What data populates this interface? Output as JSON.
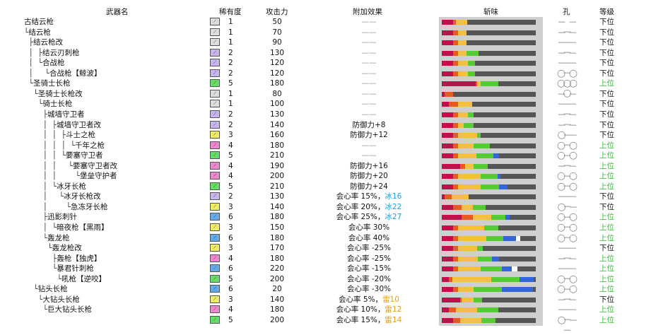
{
  "headers": {
    "name": "武器名",
    "rarity": "稀有度",
    "attack": "攻击力",
    "bonus": "附加效果",
    "sharpness": "斩味",
    "slots": "孔",
    "grade": "等级"
  },
  "colors": {
    "red": "#c0104a",
    "orange": "#e85a20",
    "yellow": "#f5c040",
    "green": "#55cc33",
    "blue": "#3366dd",
    "white": "#ffffff",
    "empty": "#555555",
    "grade_high": "#33bb33",
    "ice": "#1aa3e8",
    "thunder": "#e8a010"
  },
  "rarity_colors": {
    "1": "#dddddd",
    "2": "#c8b4ee",
    "3": "#eeee66",
    "4": "#ee88cc",
    "5": "#66dd66",
    "6": "#66aaee"
  },
  "weapons": [
    {
      "tree": "",
      "name": "古结云枪",
      "rarity": "1",
      "attack": "50",
      "bonus": "——",
      "bonus_el": "",
      "el_type": "",
      "slots": "— — —",
      "grade": "下位",
      "high": false,
      "sharp": [
        [
          "red",
          16
        ],
        [
          "orange",
          4
        ],
        [
          "yellow",
          16
        ]
      ]
    },
    {
      "tree": "└",
      "name": "结云枪",
      "rarity": "1",
      "attack": "70",
      "bonus": "——",
      "bonus_el": "",
      "el_type": "",
      "slots": "— — —",
      "grade": "下位",
      "high": false,
      "sharp": [
        [
          "red",
          16
        ],
        [
          "orange",
          7
        ],
        [
          "yellow",
          12
        ],
        [
          "green",
          0
        ]
      ]
    },
    {
      "tree": "  ├",
      "name": "结云枪改",
      "rarity": "1",
      "attack": "90",
      "bonus": "——",
      "bonus_el": "",
      "el_type": "",
      "slots": "— — —",
      "grade": "下位",
      "high": false,
      "sharp": [
        [
          "red",
          16
        ],
        [
          "orange",
          7
        ],
        [
          "yellow",
          12
        ]
      ]
    },
    {
      "tree": "  │  ├",
      "name": "结云刃刺枪",
      "rarity": "2",
      "attack": "130",
      "bonus": "——",
      "bonus_el": "",
      "el_type": "",
      "slots": "— — —",
      "grade": "下位",
      "high": false,
      "sharp": [
        [
          "red",
          16
        ],
        [
          "orange",
          7
        ],
        [
          "yellow",
          12
        ],
        [
          "green",
          17
        ]
      ]
    },
    {
      "tree": "  │  └",
      "name": "合战枪",
      "rarity": "2",
      "attack": "120",
      "bonus": "——",
      "bonus_el": "",
      "el_type": "",
      "slots": "— — —",
      "grade": "下位",
      "high": false,
      "sharp": [
        [
          "red",
          16
        ],
        [
          "orange",
          7
        ],
        [
          "yellow",
          14
        ],
        [
          "green",
          10
        ]
      ]
    },
    {
      "tree": "  │     └",
      "name": "合战枪【鲸波】",
      "rarity": "2",
      "attack": "120",
      "bonus": "——",
      "bonus_el": "",
      "el_type": "",
      "slots": "◯ ◯ ◯",
      "grade": "下位",
      "high": false,
      "sharp": [
        [
          "red",
          16
        ],
        [
          "orange",
          7
        ],
        [
          "yellow",
          14
        ],
        [
          "green",
          10
        ]
      ]
    },
    {
      "tree": "  └",
      "name": "圣骑士长枪",
      "rarity": "5",
      "attack": "180",
      "bonus": "——",
      "bonus_el": "",
      "el_type": "",
      "slots": "◯ ◯ ◯",
      "grade": "上位",
      "high": true,
      "sharp": [
        [
          "red",
          48
        ],
        [
          "orange",
          2
        ],
        [
          "yellow",
          5
        ],
        [
          "green",
          25
        ],
        [
          "blue",
          0
        ]
      ]
    },
    {
      "tree": "    └",
      "name": "圣骑士长枪改",
      "rarity": "1",
      "attack": "80",
      "bonus": "——",
      "bonus_el": "",
      "el_type": "",
      "slots": "— — —",
      "grade": "下位",
      "high": false,
      "sharp": [
        [
          "red",
          4
        ],
        [
          "orange",
          12
        ],
        [
          "yellow",
          0
        ]
      ]
    },
    {
      "tree": "      └",
      "name": "骑士长枪",
      "rarity": "1",
      "attack": "100",
      "bonus": "——",
      "bonus_el": "",
      "el_type": "",
      "slots": "— — —",
      "grade": "下位",
      "high": false,
      "sharp": [
        [
          "red",
          10
        ],
        [
          "orange",
          13
        ],
        [
          "yellow",
          20
        ],
        [
          "green",
          0
        ]
      ]
    },
    {
      "tree": "        ├",
      "name": "城墙守卫者",
      "rarity": "2",
      "attack": "130",
      "bonus": "——",
      "bonus_el": "",
      "el_type": "",
      "slots": "— — —",
      "grade": "下位",
      "high": false,
      "sharp": [
        [
          "red",
          16
        ],
        [
          "orange",
          7
        ],
        [
          "yellow",
          14
        ],
        [
          "green",
          8
        ]
      ]
    },
    {
      "tree": "        │  ├",
      "name": "城墙守卫者改",
      "rarity": "2",
      "attack": "140",
      "bonus": "防御力+8",
      "bonus_el": "",
      "el_type": "",
      "slots": "— — —",
      "grade": "下位",
      "high": false,
      "sharp": [
        [
          "red",
          16
        ],
        [
          "orange",
          7
        ],
        [
          "yellow",
          8
        ],
        [
          "green",
          14
        ]
      ]
    },
    {
      "tree": "        │  │  ├",
      "name": "斗士之枪",
      "rarity": "3",
      "attack": "160",
      "bonus": "防御力+12",
      "bonus_el": "",
      "el_type": "",
      "slots": "◯ — —",
      "grade": "下位",
      "high": false,
      "sharp": [
        [
          "red",
          16
        ],
        [
          "orange",
          7
        ],
        [
          "yellow",
          27
        ],
        [
          "green",
          5
        ]
      ]
    },
    {
      "tree": "        │  │  │  └",
      "name": "千年之枪",
      "rarity": "4",
      "attack": "180",
      "bonus": "——",
      "bonus_el": "",
      "el_type": "",
      "slots": "◯ ◯ —",
      "grade": "上位",
      "high": true,
      "sharp": [
        [
          "red",
          16
        ],
        [
          "orange",
          7
        ],
        [
          "yellow",
          22
        ],
        [
          "green",
          23
        ]
      ]
    },
    {
      "tree": "        │  │  └",
      "name": "要塞守卫者",
      "rarity": "5",
      "attack": "210",
      "bonus": "——",
      "bonus_el": "",
      "el_type": "",
      "slots": "◯ ◯ —",
      "grade": "上位",
      "high": true,
      "sharp": [
        [
          "red",
          16
        ],
        [
          "orange",
          7
        ],
        [
          "yellow",
          26
        ],
        [
          "green",
          24
        ],
        [
          "blue",
          8
        ]
      ]
    },
    {
      "tree": "        │  │     └",
      "name": "要塞守卫者改",
      "rarity": "4",
      "attack": "190",
      "bonus": "防御力+16",
      "bonus_el": "",
      "el_type": "",
      "slots": "— — —",
      "grade": "上位",
      "high": true,
      "sharp": [
        [
          "red",
          26
        ],
        [
          "orange",
          7
        ],
        [
          "yellow",
          12
        ],
        [
          "green",
          20
        ]
      ]
    },
    {
      "tree": "        │  │        └",
      "name": "堡垒守护者",
      "rarity": "4",
      "attack": "200",
      "bonus": "防御力+20",
      "bonus_el": "",
      "el_type": "",
      "slots": "◯ ◯ —",
      "grade": "上位",
      "high": true,
      "sharp": [
        [
          "red",
          16
        ],
        [
          "orange",
          7
        ],
        [
          "yellow",
          32
        ],
        [
          "green",
          24
        ],
        [
          "blue",
          4
        ]
      ]
    },
    {
      "tree": "        │  └",
      "name": "冰牙长枪",
      "rarity": "5",
      "attack": "210",
      "bonus": "防御力+24",
      "bonus_el": "",
      "el_type": "",
      "slots": "◯ ◯ —",
      "grade": "上位",
      "high": true,
      "sharp": [
        [
          "red",
          16
        ],
        [
          "orange",
          7
        ],
        [
          "yellow",
          32
        ],
        [
          "green",
          26
        ],
        [
          "blue",
          12
        ]
      ]
    },
    {
      "tree": "        │     └",
      "name": "冰牙长枪改",
      "rarity": "2",
      "attack": "130",
      "bonus": "会心率 15%，",
      "bonus_el": "冰16",
      "el_type": "ice",
      "slots": "— — —",
      "grade": "下位",
      "high": false,
      "sharp": [
        [
          "red",
          4
        ],
        [
          "orange",
          10
        ],
        [
          "yellow",
          24
        ],
        [
          "green",
          0
        ]
      ]
    },
    {
      "tree": "        │        └",
      "name": "急冻牙长枪",
      "rarity": "3",
      "attack": "140",
      "bonus": "会心率 20%，",
      "bonus_el": "冰22",
      "el_type": "ice",
      "slots": "◯ — —",
      "grade": "下位",
      "high": false,
      "sharp": [
        [
          "red",
          16
        ],
        [
          "orange",
          12
        ],
        [
          "yellow",
          16
        ],
        [
          "green",
          18
        ]
      ]
    },
    {
      "tree": "        ├",
      "name": "迅影刺针",
      "rarity": "6",
      "attack": "180",
      "bonus": "会心率 25%，",
      "bonus_el": "冰27",
      "el_type": "ice",
      "slots": "◯ ◯ —",
      "grade": "上位",
      "high": true,
      "sharp": [
        [
          "red",
          28
        ],
        [
          "orange",
          16
        ],
        [
          "yellow",
          26
        ],
        [
          "green",
          20
        ],
        [
          "blue",
          6
        ]
      ]
    },
    {
      "tree": "        │  └",
      "name": "暗夜枪【黑雨】",
      "rarity": "3",
      "attack": "150",
      "bonus": "会心率 30%",
      "bonus_el": "",
      "el_type": "",
      "slots": "◯ ◯ —",
      "grade": "上位",
      "high": true,
      "sharp": [
        [
          "red",
          16
        ],
        [
          "orange",
          7
        ],
        [
          "yellow",
          37
        ],
        [
          "green",
          20
        ]
      ]
    },
    {
      "tree": "        └",
      "name": "轰龙枪",
      "rarity": "6",
      "attack": "180",
      "bonus": "会心率 40%",
      "bonus_el": "",
      "el_type": "",
      "slots": "◯ ◯ —",
      "grade": "上位",
      "high": true,
      "sharp": [
        [
          "red",
          16
        ],
        [
          "orange",
          7
        ],
        [
          "yellow",
          40
        ],
        [
          "green",
          24
        ],
        [
          "blue",
          18
        ],
        [
          "white",
          6
        ]
      ]
    },
    {
      "tree": "          └",
      "name": "轰龙枪改",
      "rarity": "3",
      "attack": "170",
      "bonus": "会心率 -25%",
      "bonus_el": "",
      "el_type": "",
      "slots": "— — —",
      "grade": "下位",
      "high": false,
      "sharp": [
        [
          "red",
          16
        ],
        [
          "orange",
          7
        ],
        [
          "yellow",
          27
        ],
        [
          "green",
          8
        ]
      ]
    },
    {
      "tree": "            ├",
      "name": "轰枪【独虎】",
      "rarity": "4",
      "attack": "180",
      "bonus": "会心率 -25%",
      "bonus_el": "",
      "el_type": "",
      "slots": "— — —",
      "grade": "上位",
      "high": true,
      "sharp": [
        [
          "red",
          16
        ],
        [
          "orange",
          7
        ],
        [
          "yellow",
          28
        ],
        [
          "green",
          20
        ],
        [
          "blue",
          10
        ]
      ]
    },
    {
      "tree": "            └",
      "name": "暴君针刺枪",
      "rarity": "6",
      "attack": "220",
      "bonus": "会心率 -15%",
      "bonus_el": "",
      "el_type": "",
      "slots": "— — —",
      "grade": "上位",
      "high": true,
      "sharp": [
        [
          "red",
          16
        ],
        [
          "orange",
          7
        ],
        [
          "yellow",
          32
        ],
        [
          "green",
          30
        ],
        [
          "blue",
          14
        ],
        [
          "white",
          8
        ]
      ]
    },
    {
      "tree": "              └",
      "name": "吼枪【逆咬】",
      "rarity": "5",
      "attack": "200",
      "bonus": "会心率 -20%",
      "bonus_el": "",
      "el_type": "",
      "slots": "◯ ◯ —",
      "grade": "上位",
      "high": true,
      "sharp": [
        [
          "red",
          10
        ],
        [
          "orange",
          5
        ],
        [
          "yellow",
          55
        ],
        [
          "green",
          40
        ],
        [
          "blue",
          20
        ]
      ]
    },
    {
      "tree": "    └",
      "name": "钻头长枪",
      "rarity": "6",
      "attack": "20",
      "bonus": "会心率 -30%",
      "bonus_el": "",
      "el_type": "",
      "slots": "◯ ◯ —",
      "grade": "上位",
      "high": true,
      "sharp": [
        [
          "red",
          16
        ],
        [
          "orange",
          7
        ],
        [
          "yellow",
          22
        ],
        [
          "green",
          40
        ],
        [
          "blue",
          44
        ]
      ]
    },
    {
      "tree": "      └",
      "name": "大钻头长枪",
      "rarity": "3",
      "attack": "140",
      "bonus": "会心率 5%，",
      "bonus_el": "雷10",
      "el_type": "thunder",
      "slots": "— — —",
      "grade": "下位",
      "high": false,
      "sharp": [
        [
          "red",
          26
        ],
        [
          "orange",
          2
        ],
        [
          "yellow",
          17
        ],
        [
          "green",
          12
        ]
      ]
    },
    {
      "tree": "        └",
      "name": "巨大钻头长枪",
      "rarity": "4",
      "attack": "180",
      "bonus": "会心率 10%，",
      "bonus_el": "雷12",
      "el_type": "thunder",
      "slots": "— — —",
      "grade": "上位",
      "high": true,
      "sharp": [
        [
          "red",
          10
        ],
        [
          "orange",
          10
        ],
        [
          "yellow",
          30
        ],
        [
          "green",
          30
        ]
      ]
    },
    {
      "tree": "",
      "name": "",
      "rarity": "5",
      "attack": "200",
      "bonus": "会心率 15%，",
      "bonus_el": "雷14",
      "el_type": "thunder",
      "slots": "◯ — —",
      "grade": "上位",
      "high": true,
      "sharp": [
        [
          "red",
          16
        ],
        [
          "orange",
          10
        ],
        [
          "yellow",
          30
        ],
        [
          "green",
          20
        ]
      ]
    }
  ]
}
